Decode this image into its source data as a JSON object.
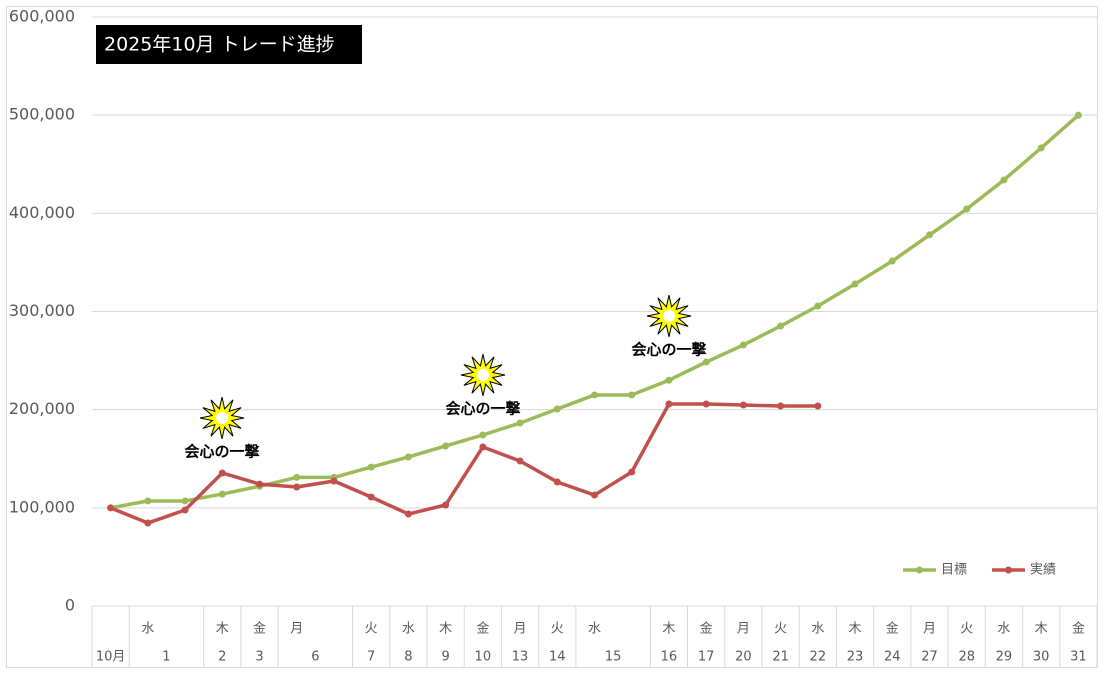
{
  "chart_data": {
    "type": "line",
    "title": "2025年10月  トレード進捗",
    "weekdays": [
      null,
      "水",
      null,
      "木",
      "金",
      "月",
      null,
      "火",
      "水",
      "木",
      "金",
      "月",
      "火",
      "水",
      null,
      "木",
      "金",
      "月",
      "火",
      "水",
      "木",
      "金",
      "月",
      "火",
      "水",
      "木",
      "金"
    ],
    "categories": [
      "10月",
      "1",
      null,
      "2",
      "3",
      "6",
      null,
      "7",
      "8",
      "9",
      "10",
      "13",
      "14",
      "15",
      null,
      "16",
      "17",
      "20",
      "21",
      "22",
      "23",
      "24",
      "27",
      "28",
      "29",
      "30",
      "31"
    ],
    "series": [
      {
        "name": "目標",
        "color": "#9bbb59",
        "values": [
          100000,
          107000,
          107000,
          114000,
          122000,
          131000,
          131000,
          141500,
          151800,
          163000,
          174200,
          186400,
          200700,
          215000,
          215000,
          230000,
          248500,
          265900,
          285200,
          305600,
          328000,
          351400,
          378000,
          404400,
          434000,
          466600,
          500000
        ]
      },
      {
        "name": "実績",
        "color": "#c0504d",
        "values": [
          100000,
          84500,
          97800,
          135500,
          124200,
          121200,
          127300,
          111000,
          93700,
          102900,
          162000,
          147700,
          126300,
          113000,
          136500,
          205800,
          205800,
          204700,
          203700,
          203700,
          null,
          null,
          null,
          null,
          null,
          null,
          null
        ]
      }
    ],
    "ylim": [
      0,
      600000
    ],
    "yticks": [
      0,
      {
        "value": 100000,
        "label": "100,000"
      },
      {
        "value": 200000,
        "label": "200,000"
      },
      {
        "value": 300000,
        "label": "300,000"
      },
      {
        "value": 400000,
        "label": "400,000"
      },
      {
        "value": 500000,
        "label": "500,000"
      },
      {
        "value": 600000,
        "label": "600,000"
      }
    ],
    "grid": true,
    "legend": "bottom-right",
    "annotations": [
      "会心の一撃",
      "会心の一撃",
      "会心の一撃"
    ]
  }
}
